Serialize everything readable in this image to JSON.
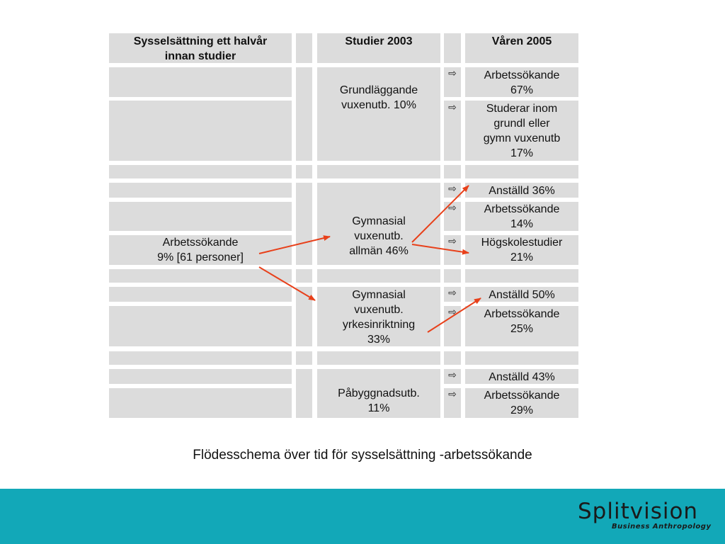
{
  "headers": {
    "col1": "Sysselsättning ett halvår\ninnan studier",
    "col2": "Studier 2003",
    "col3": "Våren 2005"
  },
  "start": "Arbetssökande\n9% [61 personer]",
  "studies": [
    "Grundläggande\nvuxenutb. 10%",
    "Gymnasial\nvuxenutb.\nallmän 46%",
    "Gymnasial\nvuxenutb.\nyrkesinriktning\n33%",
    "Påbyggnadsutb.\n11%"
  ],
  "outcomes": [
    "Arbetssökande\n67%",
    "Studerar inom\ngrundl eller\ngymn vuxenutb\n17%",
    "Anställd 36%",
    "Arbetssökande\n14%",
    "Högskolestudier\n21%",
    "Anställd 50%",
    "Arbetssökande\n25%",
    "Anställd 43%",
    "Arbetssökande\n29%"
  ],
  "arrow_icon": "right-arrow-outline-icon",
  "arrow_glyph": "⇨",
  "arrow_color": "#e8401a",
  "caption": "Flödesschema över tid för sysselsättning -arbetssökande",
  "logo": {
    "name": "Splitvision",
    "tagline": "Business Anthropology"
  },
  "footer_color": "#12a8b8"
}
